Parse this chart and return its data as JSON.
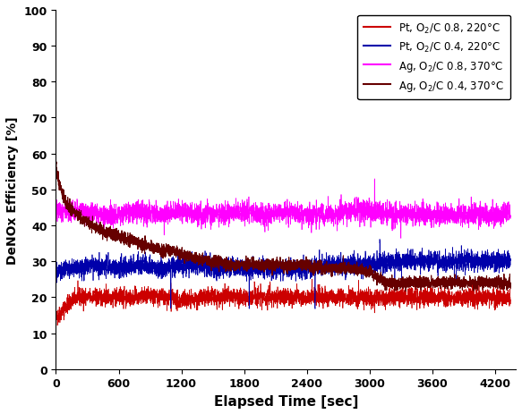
{
  "title": "",
  "xlabel": "Elapsed Time [sec]",
  "ylabel": "DeNOx Efficiency [%]",
  "xlim": [
    0,
    4400
  ],
  "ylim": [
    0,
    100
  ],
  "xticks": [
    0,
    600,
    1200,
    1800,
    2400,
    3000,
    3600,
    4200
  ],
  "yticks": [
    0,
    10,
    20,
    30,
    40,
    50,
    60,
    70,
    80,
    90,
    100
  ],
  "legend": [
    {
      "label": "Pt, O$_2$/C 0.8, 220°C",
      "color": "#CC0000"
    },
    {
      "label": "Pt, O$_2$/C 0.4, 220°C",
      "color": "#0000AA"
    },
    {
      "label": "Ag, O$_2$/C 0.8, 370°C",
      "color": "#FF00FF"
    },
    {
      "label": "Ag, O$_2$/C 0.4, 370°C",
      "color": "#660000"
    }
  ],
  "figsize": [
    5.83,
    4.64
  ],
  "dpi": 100
}
